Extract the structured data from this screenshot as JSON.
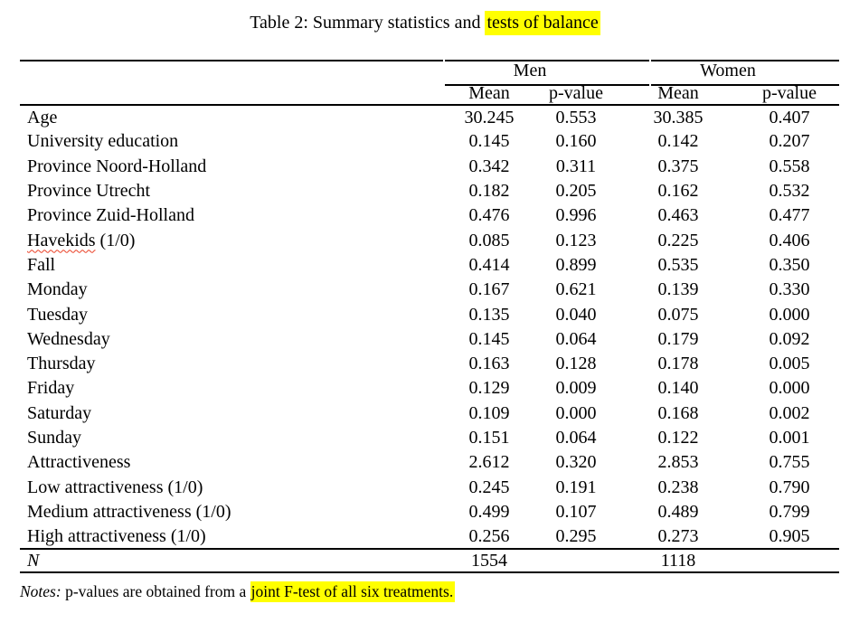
{
  "colors": {
    "background": "#ffffff",
    "text": "#000000",
    "rule": "#000000",
    "highlight": "#ffff00",
    "squiggle": "#ea3d23"
  },
  "caption": {
    "prefix": "Table 2: Summary statistics and ",
    "highlight": "tests of balance"
  },
  "table": {
    "groups": [
      "Men",
      "Women"
    ],
    "subheaders": [
      "Mean",
      "p-value",
      "Mean",
      "p-value"
    ],
    "rows": [
      {
        "label": "Age",
        "men_mean": "30.245",
        "men_pvalue": "0.553",
        "women_mean": "30.385",
        "women_pvalue": "0.407"
      },
      {
        "label": "University education",
        "men_mean": "0.145",
        "men_pvalue": "0.160",
        "women_mean": "0.142",
        "women_pvalue": "0.207"
      },
      {
        "label": "Province Noord-Holland",
        "men_mean": "0.342",
        "men_pvalue": "0.311",
        "women_mean": "0.375",
        "women_pvalue": "0.558"
      },
      {
        "label": "Province Utrecht",
        "men_mean": "0.182",
        "men_pvalue": "0.205",
        "women_mean": "0.162",
        "women_pvalue": "0.532"
      },
      {
        "label": "Province Zuid-Holland",
        "men_mean": "0.476",
        "men_pvalue": "0.996",
        "women_mean": "0.463",
        "women_pvalue": "0.477"
      },
      {
        "label": "Havekids (1/0)",
        "squiggle_word": "Havekids",
        "men_mean": "0.085",
        "men_pvalue": "0.123",
        "women_mean": "0.225",
        "women_pvalue": "0.406"
      },
      {
        "label": "Fall",
        "men_mean": "0.414",
        "men_pvalue": "0.899",
        "women_mean": "0.535",
        "women_pvalue": "0.350"
      },
      {
        "label": "Monday",
        "men_mean": "0.167",
        "men_pvalue": "0.621",
        "women_mean": "0.139",
        "women_pvalue": "0.330"
      },
      {
        "label": "Tuesday",
        "men_mean": "0.135",
        "men_pvalue": "0.040",
        "women_mean": "0.075",
        "women_pvalue": "0.000"
      },
      {
        "label": "Wednesday",
        "men_mean": "0.145",
        "men_pvalue": "0.064",
        "women_mean": "0.179",
        "women_pvalue": "0.092"
      },
      {
        "label": "Thursday",
        "men_mean": "0.163",
        "men_pvalue": "0.128",
        "women_mean": "0.178",
        "women_pvalue": "0.005"
      },
      {
        "label": "Friday",
        "men_mean": "0.129",
        "men_pvalue": "0.009",
        "women_mean": "0.140",
        "women_pvalue": "0.000"
      },
      {
        "label": "Saturday",
        "men_mean": "0.109",
        "men_pvalue": "0.000",
        "women_mean": "0.168",
        "women_pvalue": "0.002"
      },
      {
        "label": "Sunday",
        "men_mean": "0.151",
        "men_pvalue": "0.064",
        "women_mean": "0.122",
        "women_pvalue": "0.001"
      },
      {
        "label": "Attractiveness",
        "men_mean": "2.612",
        "men_pvalue": "0.320",
        "women_mean": "2.853",
        "women_pvalue": "0.755"
      },
      {
        "label": "Low attractiveness (1/0)",
        "men_mean": "0.245",
        "men_pvalue": "0.191",
        "women_mean": "0.238",
        "women_pvalue": "0.790"
      },
      {
        "label": "Medium attractiveness (1/0)",
        "men_mean": "0.499",
        "men_pvalue": "0.107",
        "women_mean": "0.489",
        "women_pvalue": "0.799"
      },
      {
        "label": "High attractiveness (1/0)",
        "men_mean": "0.256",
        "men_pvalue": "0.295",
        "women_mean": "0.273",
        "women_pvalue": "0.905"
      }
    ],
    "n_row": {
      "label": "N",
      "men_n": "1554",
      "women_n": "1118"
    }
  },
  "notes": {
    "label": "Notes:",
    "text": " p-values are obtained from a ",
    "highlight": "joint F-test of all six treatments."
  }
}
